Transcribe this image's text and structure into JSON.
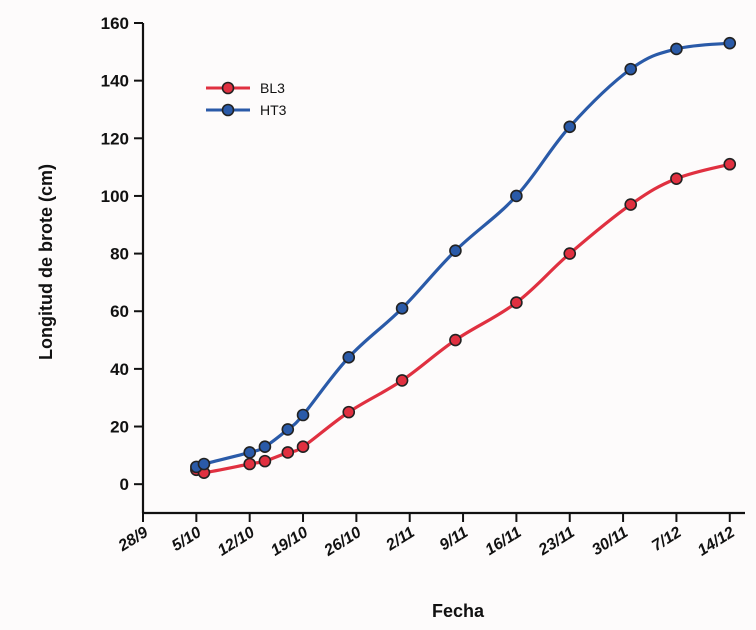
{
  "chart_data": {
    "type": "line",
    "title": "",
    "xlabel": "Fecha",
    "ylabel": "Longitud de brote (cm)",
    "ylim": [
      -10,
      160
    ],
    "yticks": [
      0,
      20,
      40,
      60,
      80,
      100,
      120,
      140,
      160
    ],
    "xticks": [
      {
        "label": "28/9",
        "day": 0
      },
      {
        "label": "5/10",
        "day": 7
      },
      {
        "label": "12/10",
        "day": 14
      },
      {
        "label": "19/10",
        "day": 21
      },
      {
        "label": "26/10",
        "day": 28
      },
      {
        "label": "2/11",
        "day": 35
      },
      {
        "label": "9/11",
        "day": 42
      },
      {
        "label": "16/11",
        "day": 49
      },
      {
        "label": "23/11",
        "day": 56
      },
      {
        "label": "30/11",
        "day": 63
      },
      {
        "label": "7/12",
        "day": 70
      },
      {
        "label": "14/12",
        "day": 77
      }
    ],
    "grid": false,
    "legend_position": "top-left",
    "series": [
      {
        "name": "BL3",
        "color": "#e03040",
        "points": [
          {
            "x": 7,
            "y": 5
          },
          {
            "x": 8,
            "y": 4
          },
          {
            "x": 14,
            "y": 7
          },
          {
            "x": 16,
            "y": 8
          },
          {
            "x": 19,
            "y": 11
          },
          {
            "x": 21,
            "y": 13
          },
          {
            "x": 27,
            "y": 25
          },
          {
            "x": 34,
            "y": 36
          },
          {
            "x": 41,
            "y": 50
          },
          {
            "x": 49,
            "y": 63
          },
          {
            "x": 56,
            "y": 80
          },
          {
            "x": 64,
            "y": 97
          },
          {
            "x": 70,
            "y": 106
          },
          {
            "x": 77,
            "y": 111
          }
        ]
      },
      {
        "name": "HT3",
        "color": "#2a5aa8",
        "points": [
          {
            "x": 7,
            "y": 6
          },
          {
            "x": 8,
            "y": 7
          },
          {
            "x": 14,
            "y": 11
          },
          {
            "x": 16,
            "y": 13
          },
          {
            "x": 19,
            "y": 19
          },
          {
            "x": 21,
            "y": 24
          },
          {
            "x": 27,
            "y": 44
          },
          {
            "x": 34,
            "y": 61
          },
          {
            "x": 41,
            "y": 81
          },
          {
            "x": 49,
            "y": 100
          },
          {
            "x": 56,
            "y": 124
          },
          {
            "x": 64,
            "y": 144
          },
          {
            "x": 70,
            "y": 151
          },
          {
            "x": 77,
            "y": 153
          }
        ]
      }
    ]
  }
}
